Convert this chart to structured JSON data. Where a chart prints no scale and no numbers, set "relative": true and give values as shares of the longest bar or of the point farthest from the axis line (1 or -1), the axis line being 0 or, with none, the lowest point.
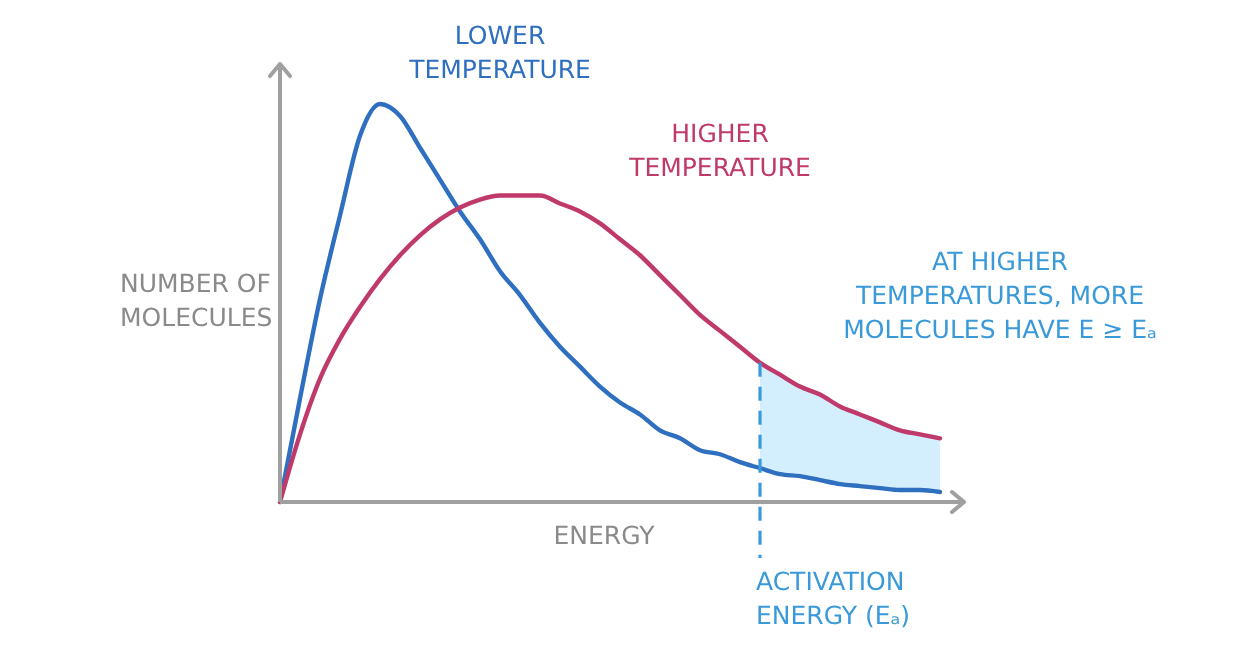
{
  "chart_data": {
    "type": "line",
    "relative": true,
    "xlabel": "ENERGY",
    "ylabel": "NUMBER OF\nMOLECULES",
    "categories": [
      null,
      null,
      null,
      null,
      null,
      null,
      null,
      null,
      null,
      null,
      null,
      null,
      null,
      null,
      null,
      null,
      null,
      null,
      null,
      null,
      null,
      null,
      null,
      null,
      null,
      null,
      null,
      null,
      null,
      null,
      null,
      null,
      null,
      null
    ],
    "series": [
      {
        "name": "LOWER\nTEMPERATURE",
        "color": "#2f6fbf",
        "values": [
          0,
          0.26,
          0.51,
          0.72,
          0.92,
          1,
          0.97,
          0.89,
          0.81,
          0.73,
          0.66,
          0.58,
          0.52,
          0.45,
          0.39,
          0.34,
          0.29,
          0.25,
          0.22,
          0.18,
          0.16,
          0.13,
          0.12,
          0.1,
          0.085,
          0.07,
          0.065,
          0.055,
          0.045,
          0.04,
          0.035,
          0.03,
          0.03,
          0.025
        ]
      },
      {
        "name": "HIGHER\nTEMPERATURE",
        "color": "#c0396b",
        "values": [
          0,
          0.17,
          0.31,
          0.41,
          0.49,
          0.56,
          0.62,
          0.67,
          0.71,
          0.74,
          0.76,
          0.77,
          0.77,
          0.77,
          0.75,
          0.73,
          0.7,
          0.66,
          0.62,
          0.57,
          0.52,
          0.47,
          0.43,
          0.39,
          0.35,
          0.32,
          0.29,
          0.27,
          0.24,
          0.22,
          0.2,
          0.18,
          0.17,
          0.16
        ],
        "lower": [
          null,
          null,
          null,
          null,
          null,
          null,
          null,
          null,
          null,
          null,
          null,
          null,
          null,
          null,
          null,
          null,
          null,
          null,
          null,
          null,
          null,
          null,
          null,
          null,
          0.085,
          0.07,
          0.065,
          0.055,
          0.045,
          0.04,
          0.035,
          0.03,
          0.03,
          0.025
        ],
        "upper": [
          null,
          null,
          null,
          null,
          null,
          null,
          null,
          null,
          null,
          null,
          null,
          null,
          null,
          null,
          null,
          null,
          null,
          null,
          null,
          null,
          null,
          null,
          null,
          null,
          0.35,
          0.32,
          0.29,
          0.27,
          0.24,
          0.22,
          0.2,
          0.18,
          0.17,
          0.16
        ]
      }
    ],
    "annotations": [
      "AT HIGHER\nTEMPERATURES, MORE\nMOLECULES HAVE E ≥ Eₐ",
      "ACTIVATION\nENERGY (Eₐ)"
    ]
  }
}
